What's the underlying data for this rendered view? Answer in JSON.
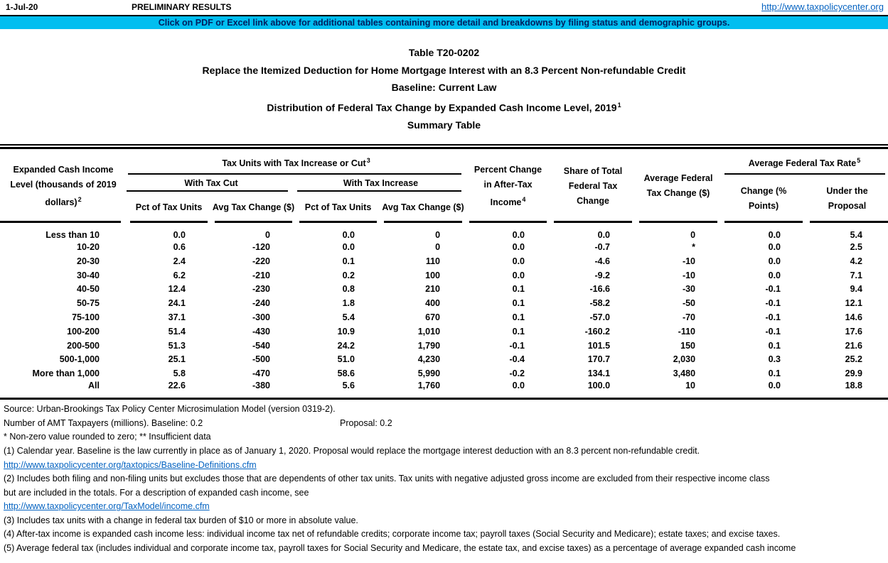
{
  "header_bar": {
    "date": "1-Jul-20",
    "preliminary": "PRELIMINARY RESULTS",
    "url": "http://www.taxpolicycenter.org"
  },
  "banner": {
    "text": "Click on PDF or Excel link above for additional tables containing more detail and breakdowns by filing status and demographic groups.",
    "bg_color": "#00BEF0",
    "text_color": "#002060"
  },
  "title": {
    "line1": "Table T20-0202",
    "line2": "Replace the Itemized Deduction for Home Mortgage Interest with an 8.3 Percent Non-refundable Credit",
    "line3": "Baseline: Current Law",
    "line4": "Distribution of Federal Tax Change by Expanded Cash Income Level, 2019",
    "line4_sup": "1",
    "line5": "Summary Table"
  },
  "table": {
    "row_header": {
      "label": "Expanded Cash Income Level (thousands of 2019 dollars)",
      "sup": "2"
    },
    "groups": {
      "tax_units": {
        "label": "Tax Units with Tax Increase or Cut",
        "sup": "3"
      },
      "with_tax_cut": "With Tax Cut",
      "with_tax_increase": "With Tax Increase",
      "avg_rate": {
        "label": "Average Federal Tax Rate",
        "sup": "5"
      }
    },
    "col_headers": {
      "cut_pct": "Pct of Tax Units",
      "cut_avg": "Avg Tax Change ($)",
      "inc_pct": "Pct of Tax Units",
      "inc_avg": "Avg Tax Change ($)",
      "pct_change_ati": {
        "label": "Percent Change in After-Tax Income",
        "sup": "4"
      },
      "share_total": "Share of Total Federal Tax Change",
      "avg_change": "Average Federal Tax Change ($)",
      "rate_change": "Change (% Points)",
      "rate_under": "Under the Proposal"
    },
    "rows": [
      {
        "label": "Less than 10",
        "values": [
          "0.0",
          "0",
          "0.0",
          "0",
          "0.0",
          "0.0",
          "0",
          "0.0",
          "5.4"
        ]
      },
      {
        "label": "10-20",
        "values": [
          "0.6",
          "-120",
          "0.0",
          "0",
          "0.0",
          "-0.7",
          "*",
          "0.0",
          "2.5"
        ]
      },
      {
        "label": "20-30",
        "values": [
          "2.4",
          "-220",
          "0.1",
          "110",
          "0.0",
          "-4.6",
          "-10",
          "0.0",
          "4.2"
        ]
      },
      {
        "label": "30-40",
        "values": [
          "6.2",
          "-210",
          "0.2",
          "100",
          "0.0",
          "-9.2",
          "-10",
          "0.0",
          "7.1"
        ]
      },
      {
        "label": "40-50",
        "values": [
          "12.4",
          "-230",
          "0.8",
          "210",
          "0.1",
          "-16.6",
          "-30",
          "-0.1",
          "9.4"
        ]
      },
      {
        "label": "50-75",
        "values": [
          "24.1",
          "-240",
          "1.8",
          "400",
          "0.1",
          "-58.2",
          "-50",
          "-0.1",
          "12.1"
        ]
      },
      {
        "label": "75-100",
        "values": [
          "37.1",
          "-300",
          "5.4",
          "670",
          "0.1",
          "-57.0",
          "-70",
          "-0.1",
          "14.6"
        ]
      },
      {
        "label": "100-200",
        "values": [
          "51.4",
          "-430",
          "10.9",
          "1,010",
          "0.1",
          "-160.2",
          "-110",
          "-0.1",
          "17.6"
        ]
      },
      {
        "label": "200-500",
        "values": [
          "51.3",
          "-540",
          "24.2",
          "1,790",
          "-0.1",
          "101.5",
          "150",
          "0.1",
          "21.6"
        ]
      },
      {
        "label": "500-1,000",
        "values": [
          "25.1",
          "-500",
          "51.0",
          "4,230",
          "-0.4",
          "170.7",
          "2,030",
          "0.3",
          "25.2"
        ]
      },
      {
        "label": "More than 1,000",
        "values": [
          "5.8",
          "-470",
          "58.6",
          "5,990",
          "-0.2",
          "134.1",
          "3,480",
          "0.1",
          "29.9"
        ]
      },
      {
        "label": "All",
        "values": [
          "22.6",
          "-380",
          "5.6",
          "1,760",
          "0.0",
          "100.0",
          "10",
          "0.0",
          "18.8"
        ]
      }
    ]
  },
  "footnotes": [
    {
      "type": "text",
      "text": "Source: Urban-Brookings Tax Policy Center Microsimulation Model (version 0319-2)."
    },
    {
      "type": "amt",
      "left": "Number of AMT Taxpayers (millions).  Baseline: 0.2",
      "right": "Proposal: 0.2"
    },
    {
      "type": "text",
      "text": "* Non-zero value rounded to zero; ** Insufficient data"
    },
    {
      "type": "text",
      "text": "(1) Calendar year. Baseline is the law currently in place as of January 1, 2020. Proposal would replace the mortgage interest deduction with an 8.3 percent non-refundable credit."
    },
    {
      "type": "link",
      "text": "http://www.taxpolicycenter.org/taxtopics/Baseline-Definitions.cfm"
    },
    {
      "type": "text",
      "text": "(2) Includes both filing and non-filing units but excludes those that are dependents of other tax units. Tax units with negative adjusted gross income are excluded from their respective income class"
    },
    {
      "type": "text",
      "text": "but are included in the totals. For a description of expanded cash income, see"
    },
    {
      "type": "link",
      "text": "http://www.taxpolicycenter.org/TaxModel/income.cfm"
    },
    {
      "type": "text",
      "text": "(3) Includes tax units with a change in federal tax burden of $10 or more in absolute value."
    },
    {
      "type": "text",
      "text": "(4) After-tax income is expanded cash income less: individual income tax net of refundable credits; corporate income tax; payroll taxes (Social Security and Medicare); estate taxes; and excise taxes."
    },
    {
      "type": "text",
      "text": "(5) Average federal tax (includes individual and corporate income tax, payroll taxes for Social Security and Medicare, the estate tax, and excise taxes) as a percentage of average expanded cash income"
    }
  ]
}
